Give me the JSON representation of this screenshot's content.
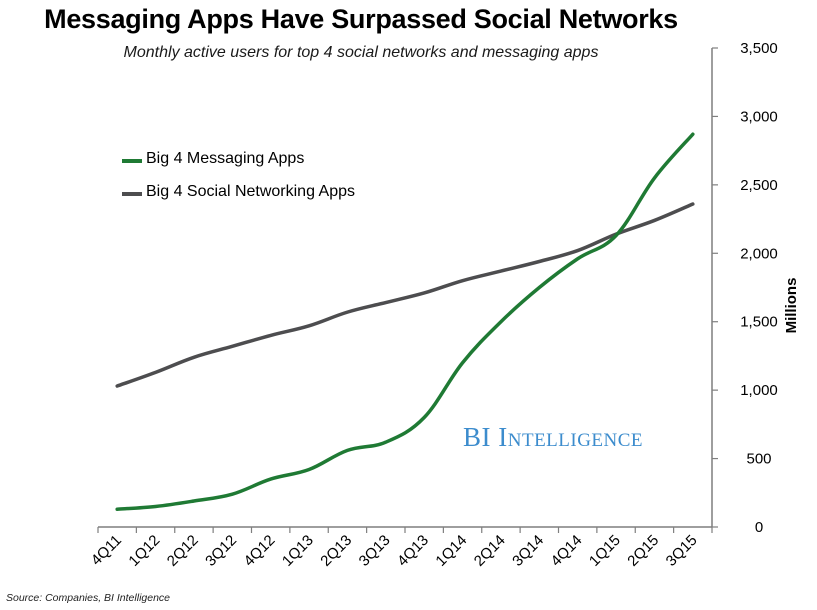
{
  "title": "Messaging Apps Have Surpassed Social Networks",
  "subtitle": "Monthly active users for top 4 social networks and messaging apps",
  "source": "Source: Companies, BI Intelligence",
  "watermark": {
    "first": "BI",
    "second": "Intelligence"
  },
  "colors": {
    "messaging": "#1f7a34",
    "social": "#4d4d4f",
    "watermark": "#3c8ccd"
  },
  "chart_data": {
    "type": "line",
    "title": "Messaging Apps Have Surpassed Social Networks",
    "subtitle": "Monthly active users for top 4 social networks and messaging apps",
    "ylabel": "Millions",
    "xlabel": "",
    "ylim": [
      0,
      3500
    ],
    "yticks": [
      0,
      500,
      1000,
      1500,
      2000,
      2500,
      3000,
      3500
    ],
    "ytick_labels": [
      "0",
      "500",
      "1,000",
      "1,500",
      "2,000",
      "2,500",
      "3,000",
      "3,500"
    ],
    "y_axis_position": "right",
    "legend_position": "top-left",
    "grid": false,
    "categories": [
      "4Q11",
      "1Q12",
      "2Q12",
      "3Q12",
      "4Q12",
      "1Q13",
      "2Q13",
      "3Q13",
      "4Q13",
      "1Q14",
      "2Q14",
      "3Q14",
      "4Q14",
      "1Q15",
      "2Q15",
      "3Q15"
    ],
    "series": [
      {
        "name": "Big 4 Messaging Apps",
        "color": "#1f7a34",
        "values": [
          130,
          150,
          190,
          240,
          350,
          420,
          560,
          620,
          800,
          1200,
          1500,
          1750,
          1960,
          2130,
          2550,
          2870
        ]
      },
      {
        "name": "Big 4 Social Networking Apps",
        "color": "#4d4d4f",
        "values": [
          1030,
          1130,
          1240,
          1320,
          1400,
          1470,
          1570,
          1640,
          1710,
          1800,
          1870,
          1940,
          2020,
          2140,
          2240,
          2360
        ]
      }
    ]
  }
}
